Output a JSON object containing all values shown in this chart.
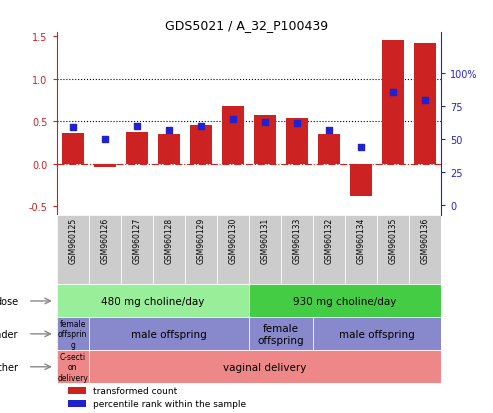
{
  "title": "GDS5021 / A_32_P100439",
  "samples": [
    "GSM960125",
    "GSM960126",
    "GSM960127",
    "GSM960128",
    "GSM960129",
    "GSM960130",
    "GSM960131",
    "GSM960133",
    "GSM960132",
    "GSM960134",
    "GSM960135",
    "GSM960136"
  ],
  "bar_values": [
    0.36,
    -0.03,
    0.37,
    0.35,
    0.46,
    0.68,
    0.57,
    0.54,
    0.35,
    -0.38,
    1.46,
    1.42
  ],
  "dot_values": [
    59,
    50,
    60,
    57,
    60,
    65,
    63,
    62,
    57,
    44,
    86,
    80
  ],
  "bar_color": "#cc2222",
  "dot_color": "#2222cc",
  "hline_0_color": "#cc2222",
  "hline_05_color": "#000000",
  "hline_1_color": "#000000",
  "ylim_left": [
    -0.6,
    1.55
  ],
  "ylim_right": [
    -7.5,
    131.25
  ],
  "yticks_left": [
    -0.5,
    0.0,
    0.5,
    1.0,
    1.5
  ],
  "yticks_right": [
    0,
    25,
    50,
    75,
    100
  ],
  "ytick_labels_right": [
    "0",
    "25",
    "50",
    "75",
    "100%"
  ],
  "right_axis_color": "#2222cc",
  "background_color": "#ffffff",
  "plot_bg_color": "#ffffff",
  "sample_bg_color": "#cccccc",
  "dose_labels": [
    {
      "text": "480 mg choline/day",
      "start": 0,
      "end": 6,
      "color": "#99ee99"
    },
    {
      "text": "930 mg choline/day",
      "start": 6,
      "end": 12,
      "color": "#44cc44"
    }
  ],
  "gender_labels": [
    {
      "text": "female\noffsprin\ng",
      "start": 0,
      "end": 1,
      "color": "#8888cc"
    },
    {
      "text": "male offspring",
      "start": 1,
      "end": 6,
      "color": "#8888cc"
    },
    {
      "text": "female\noffspring",
      "start": 6,
      "end": 8,
      "color": "#8888cc"
    },
    {
      "text": "male offspring",
      "start": 8,
      "end": 12,
      "color": "#8888cc"
    }
  ],
  "other_labels": [
    {
      "text": "C-secti\non\ndelivery",
      "start": 0,
      "end": 1,
      "color": "#ee8888"
    },
    {
      "text": "vaginal delivery",
      "start": 1,
      "end": 12,
      "color": "#ee8888"
    }
  ],
  "row_labels": [
    "dose",
    "gender",
    "other"
  ],
  "legend_items": [
    {
      "color": "#cc2222",
      "label": "transformed count"
    },
    {
      "color": "#2222cc",
      "label": "percentile rank within the sample"
    }
  ]
}
